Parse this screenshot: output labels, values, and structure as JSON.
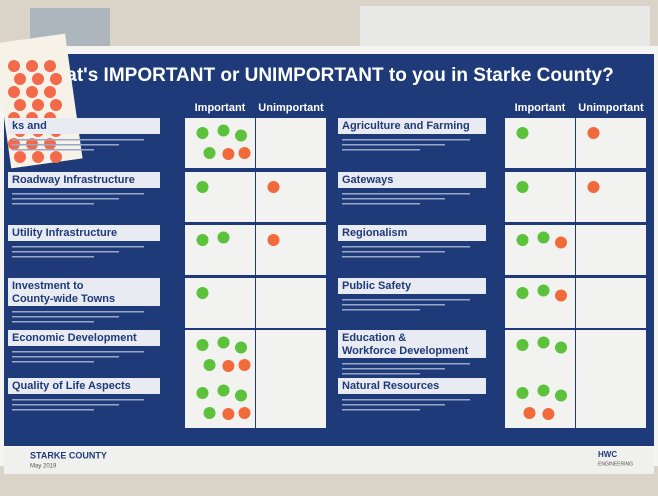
{
  "title": "at's IMPORTANT or UNIMPORTANT to you in Starke County?",
  "left_headers": [
    "Important",
    "Unimportant"
  ],
  "right_headers": [
    "Important",
    "Unimportant"
  ],
  "left_topics": [
    {
      "label": "ks and",
      "important": {
        "green": 4,
        "orange": 2
      },
      "unimportant": {
        "green": 0,
        "orange": 0
      }
    },
    {
      "label": "Roadway Infrastructure",
      "important": {
        "green": 1,
        "orange": 0
      },
      "unimportant": {
        "green": 0,
        "orange": 1
      }
    },
    {
      "label": "Utility Infrastructure",
      "important": {
        "green": 2,
        "orange": 0
      },
      "unimportant": {
        "green": 0,
        "orange": 1
      }
    },
    {
      "label": "Investment to County-wide Towns",
      "important": {
        "green": 1,
        "orange": 0
      },
      "unimportant": {
        "green": 0,
        "orange": 0
      }
    },
    {
      "label": "Economic Development",
      "important": {
        "green": 4,
        "orange": 2
      },
      "unimportant": {
        "green": 0,
        "orange": 0
      }
    },
    {
      "label": "Quality of Life Aspects",
      "important": {
        "green": 4,
        "orange": 2
      },
      "unimportant": {
        "green": 0,
        "orange": 0
      }
    }
  ],
  "right_topics": [
    {
      "label": "Agriculture and Farming",
      "important": {
        "green": 1,
        "orange": 0
      },
      "unimportant": {
        "green": 0,
        "orange": 1
      }
    },
    {
      "label": "Gateways",
      "important": {
        "green": 1,
        "orange": 0
      },
      "unimportant": {
        "green": 0,
        "orange": 1
      }
    },
    {
      "label": "Regionalism",
      "important": {
        "green": 2,
        "orange": 1
      },
      "unimportant": {
        "green": 0,
        "orange": 0
      }
    },
    {
      "label": "Public Safety",
      "important": {
        "green": 2,
        "orange": 1
      },
      "unimportant": {
        "green": 0,
        "orange": 0
      }
    },
    {
      "label": "Education & Workforce Development",
      "important": {
        "green": 3,
        "orange": 0
      },
      "unimportant": {
        "green": 0,
        "orange": 0
      }
    },
    {
      "label": "Natural Resources",
      "important": {
        "green": 3,
        "orange": 2
      },
      "unimportant": {
        "green": 0,
        "orange": 0
      }
    }
  ],
  "footer": {
    "county": "STARKE COUNTY",
    "date": "May 2019",
    "firm": "HWC",
    "firm_sub": "ENGINEERING"
  }
}
